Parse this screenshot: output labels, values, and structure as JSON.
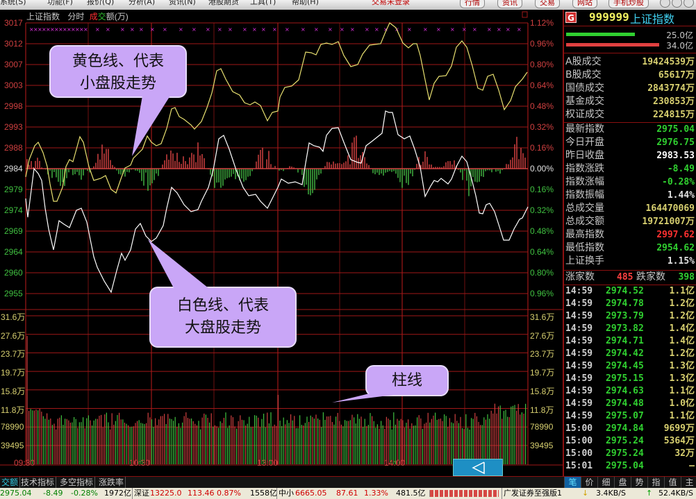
{
  "menubar": {
    "items": [
      "系统(S)",
      "功能(F)",
      "报价(Q)",
      "分析(A)",
      "资讯(N)",
      "港股期货",
      "工具(T)",
      "帮助(H)"
    ],
    "login_status": "交易未登录",
    "buttons": [
      "行情",
      "资讯",
      "交易",
      "网站",
      "手机炒股"
    ]
  },
  "chart": {
    "title": "上证指数",
    "mode": "分时",
    "indicator_prefix_red": "成",
    "indicator_prefix_green": "交",
    "indicator_rest": "额(万)",
    "price_ticks": [
      "3017",
      "3012",
      "3007",
      "3003",
      "2998",
      "2993",
      "2988",
      "2984",
      "2979",
      "2974",
      "2969",
      "2964",
      "2960",
      "2955"
    ],
    "pct_ticks": [
      "1.12%",
      "0.96%",
      "0.80%",
      "0.64%",
      "0.48%",
      "0.32%",
      "0.16%",
      "0.00%",
      "0.16%",
      "0.32%",
      "0.48%",
      "0.64%",
      "0.80%",
      "0.96%"
    ],
    "volume_ticks": [
      "31.6万",
      "27.6万",
      "23.7万",
      "19.7万",
      "15.8万",
      "11.8万",
      "78990",
      "39495"
    ],
    "time_ticks": [
      "09:30",
      "10:30",
      "13:00",
      "14:00"
    ],
    "colors": {
      "up": "#ff3030",
      "down": "#30c030",
      "small_cap_line": "#e8e070",
      "large_cap_line": "#ffffff",
      "grid": "#a01818"
    }
  },
  "annotations": {
    "yellow": [
      "黄色线、代表",
      "小盘股走势"
    ],
    "white": [
      "白色线、代表",
      "大盘股走势"
    ],
    "bars": "柱线"
  },
  "panel": {
    "badge": "G",
    "code": "999999",
    "name": "上证指数",
    "buy_amount": "25.0亿",
    "sell_amount": "34.0亿",
    "buy_ratio": 0.58,
    "sell_ratio": 0.79,
    "turnover": [
      {
        "label": "A股成交",
        "value": "19424539万"
      },
      {
        "label": "B股成交",
        "value": "65617万"
      },
      {
        "label": "国债成交",
        "value": "2843774万"
      },
      {
        "label": "基金成交",
        "value": "230853万"
      },
      {
        "label": "权证成交",
        "value": "224815万"
      }
    ],
    "stats": [
      {
        "label": "最新指数",
        "value": "2975.04",
        "color": "#30d030"
      },
      {
        "label": "今日开盘",
        "value": "2976.75",
        "color": "#30d030"
      },
      {
        "label": "昨日收盘",
        "value": "2983.53",
        "color": "#ffffff"
      },
      {
        "label": "指数涨跌",
        "value": "-8.49",
        "color": "#30d030"
      },
      {
        "label": "指数涨幅",
        "value": "-0.28%",
        "color": "#30d030"
      },
      {
        "label": "指数振幅",
        "value": "1.44%",
        "color": "#e0e0e0"
      },
      {
        "label": "总成交量",
        "value": "164470069",
        "color": "#d8d070"
      },
      {
        "label": "总成交额",
        "value": "19721007万",
        "color": "#d8d070"
      },
      {
        "label": "最高指数",
        "value": "2997.62",
        "color": "#ff3030"
      },
      {
        "label": "最低指数",
        "value": "2954.62",
        "color": "#30d030"
      },
      {
        "label": "上证换手",
        "value": "1.15%",
        "color": "#e0e0e0"
      }
    ],
    "advance_label": "涨家数",
    "advance_value": "485",
    "decline_label": "跌家数",
    "decline_value": "398",
    "ticks": [
      {
        "time": "14:59",
        "price": "2974.52",
        "amount": "1.1亿"
      },
      {
        "time": "14:59",
        "price": "2974.78",
        "amount": "1.2亿"
      },
      {
        "time": "14:59",
        "price": "2973.79",
        "amount": "1.2亿"
      },
      {
        "time": "14:59",
        "price": "2973.82",
        "amount": "1.4亿"
      },
      {
        "time": "14:59",
        "price": "2974.71",
        "amount": "1.4亿"
      },
      {
        "time": "14:59",
        "price": "2974.42",
        "amount": "1.2亿"
      },
      {
        "time": "14:59",
        "price": "2974.45",
        "amount": "1.3亿"
      },
      {
        "time": "14:59",
        "price": "2975.15",
        "amount": "1.3亿"
      },
      {
        "time": "14:59",
        "price": "2974.63",
        "amount": "1.1亿"
      },
      {
        "time": "14:59",
        "price": "2974.48",
        "amount": "1.0亿"
      },
      {
        "time": "14:59",
        "price": "2975.07",
        "amount": "1.1亿"
      },
      {
        "time": "15:00",
        "price": "2974.84",
        "amount": "9699万"
      },
      {
        "time": "15:00",
        "price": "2975.24",
        "amount": "5364万"
      },
      {
        "time": "15:00",
        "price": "2975.24",
        "amount": "32万"
      },
      {
        "time": "15:01",
        "price": "2975.04",
        "amount": "—"
      }
    ]
  },
  "tabs": {
    "left": [
      "交额",
      "技术指标",
      "多空指标",
      "涨跌率"
    ],
    "right": [
      "笔",
      "价",
      "细",
      "盘",
      "势",
      "指",
      "值",
      "主"
    ]
  },
  "status": {
    "sh_price": "2975.04",
    "sh_change": "-8.49",
    "sh_pct": "-0.28%",
    "sh_amount": "1972亿",
    "sz_label": "深证",
    "sz_price": "13225.0",
    "sz_change": "113.46",
    "sz_pct": "0.87%",
    "sz_amount": "1558亿",
    "zx_label": "中小",
    "zx_price": "6665.05",
    "zx_change": "87.61",
    "zx_pct": "1.33%",
    "zx_amount": "481.5亿",
    "broker": "广发证券至强版1",
    "down_speed": "3.4KB/S",
    "up_speed": "52.4KB/S"
  }
}
